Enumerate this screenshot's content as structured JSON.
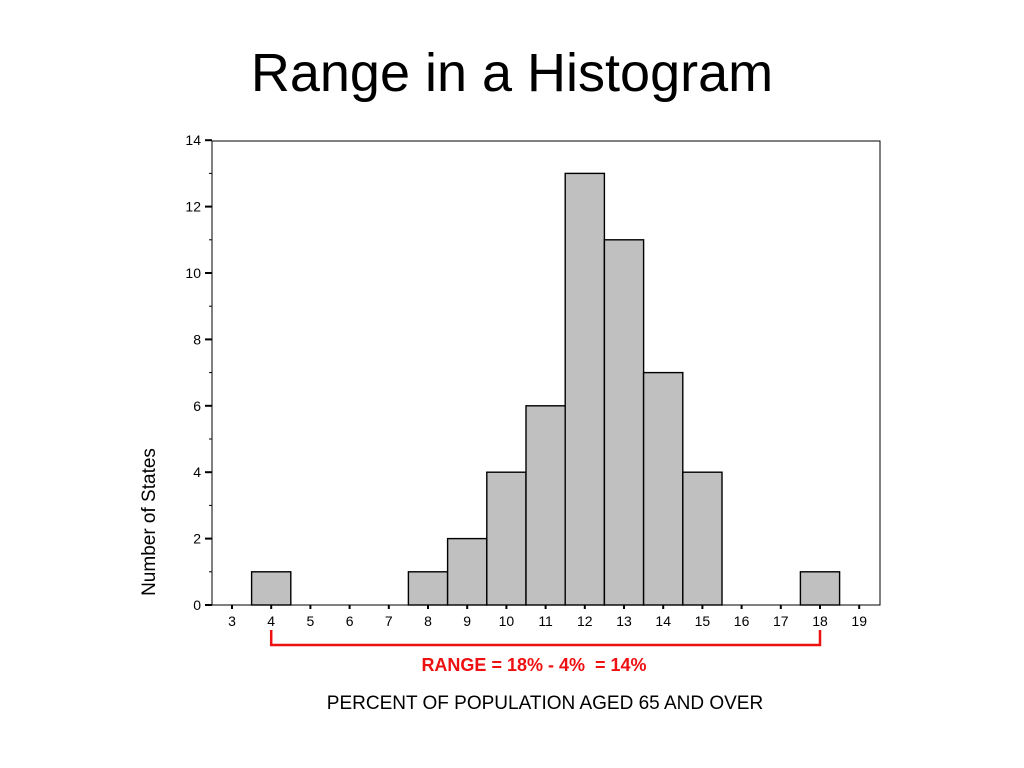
{
  "slide": {
    "title": "Range in a Histogram"
  },
  "colors": {
    "bar_fill": "#c0c0c0",
    "bar_stroke": "#000000",
    "annotation": "#ee1111"
  },
  "chart_data": {
    "type": "bar",
    "title": "",
    "xlabel": "PERCENT OF POPULATION AGED 65 AND OVER",
    "ylabel": "Number of States",
    "x_ticks": [
      "3",
      "4",
      "5",
      "6",
      "7",
      "8",
      "9",
      "10",
      "11",
      "12",
      "13",
      "14",
      "15",
      "16",
      "17",
      "18",
      "19"
    ],
    "x_range": [
      3,
      19
    ],
    "ylim": [
      0,
      14
    ],
    "y_ticks": [
      0,
      2,
      4,
      6,
      8,
      10,
      12,
      14
    ],
    "bins": [
      {
        "center": 4,
        "count": 1
      },
      {
        "center": 5,
        "count": 0
      },
      {
        "center": 6,
        "count": 0
      },
      {
        "center": 7,
        "count": 0
      },
      {
        "center": 8,
        "count": 1
      },
      {
        "center": 9,
        "count": 2
      },
      {
        "center": 10,
        "count": 4
      },
      {
        "center": 11,
        "count": 6
      },
      {
        "center": 12,
        "count": 13
      },
      {
        "center": 13,
        "count": 11
      },
      {
        "center": 14,
        "count": 7
      },
      {
        "center": 15,
        "count": 4
      },
      {
        "center": 16,
        "count": 0
      },
      {
        "center": 17,
        "count": 0
      },
      {
        "center": 18,
        "count": 1
      }
    ],
    "grid": false,
    "annotation": {
      "text": "RANGE = 18% - 4%  = 14%",
      "from": 4,
      "to": 18
    }
  }
}
